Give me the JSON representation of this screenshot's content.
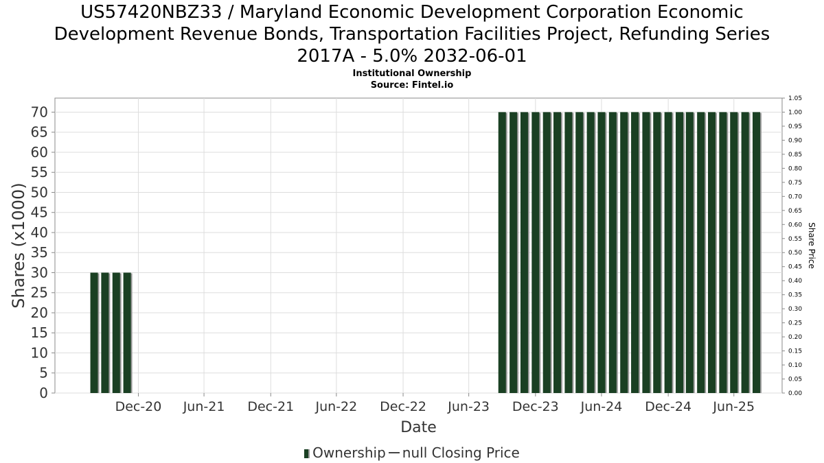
{
  "header": {
    "title_lines": [
      "US57420NBZ33 / Maryland Economic Development Corporation Economic",
      "Development Revenue Bonds, Transportation Facilities Project, Refunding Series",
      "2017A - 5.0% 2032-06-01"
    ],
    "subtitle1": "Institutional Ownership",
    "subtitle2": "Source: Fintel.io"
  },
  "legend": {
    "ownership_label": "Ownership",
    "price_label": "null Closing Price"
  },
  "colors": {
    "bar": "#1a4023",
    "bar_shadow": "#999999",
    "grid": "#dddddd",
    "axis": "#888888"
  },
  "chart_data": {
    "type": "bar",
    "xlabel": "Date",
    "ylabel": "Shares (x1000)",
    "y2label": "Share Price",
    "ylim": [
      0,
      73.5
    ],
    "yticks": [
      0,
      5,
      10,
      15,
      20,
      25,
      30,
      35,
      40,
      45,
      50,
      55,
      60,
      65,
      70
    ],
    "y2lim": [
      0,
      1.05
    ],
    "y2ticks": [
      "0.00",
      "0.05",
      "0.10",
      "0.15",
      "0.20",
      "0.25",
      "0.30",
      "0.35",
      "0.40",
      "0.45",
      "0.50",
      "0.55",
      "0.60",
      "0.65",
      "0.70",
      "0.75",
      "0.80",
      "0.85",
      "0.90",
      "0.95",
      "1.00",
      "1.05"
    ],
    "xlim": [
      "2020-05-15",
      "2025-11-10"
    ],
    "xticks": [
      {
        "label": "Dec-20",
        "date": "2020-12-31"
      },
      {
        "label": "Jun-21",
        "date": "2021-06-30"
      },
      {
        "label": "Dec-21",
        "date": "2021-12-31"
      },
      {
        "label": "Jun-22",
        "date": "2022-06-30"
      },
      {
        "label": "Dec-22",
        "date": "2022-12-31"
      },
      {
        "label": "Jun-23",
        "date": "2023-06-30"
      },
      {
        "label": "Dec-23",
        "date": "2023-12-31"
      },
      {
        "label": "Jun-24",
        "date": "2024-06-30"
      },
      {
        "label": "Dec-24",
        "date": "2024-12-31"
      },
      {
        "label": "Jun-25",
        "date": "2025-06-30"
      }
    ],
    "grid": true,
    "series": [
      {
        "name": "Ownership",
        "points": [
          {
            "date": "2020-08-31",
            "value": 30
          },
          {
            "date": "2020-09-30",
            "value": 30
          },
          {
            "date": "2020-10-31",
            "value": 30
          },
          {
            "date": "2020-11-30",
            "value": 30
          },
          {
            "date": "2023-09-30",
            "value": 70
          },
          {
            "date": "2023-10-31",
            "value": 70
          },
          {
            "date": "2023-11-30",
            "value": 70
          },
          {
            "date": "2023-12-31",
            "value": 70
          },
          {
            "date": "2024-01-31",
            "value": 70
          },
          {
            "date": "2024-02-29",
            "value": 70
          },
          {
            "date": "2024-03-31",
            "value": 70
          },
          {
            "date": "2024-04-30",
            "value": 70
          },
          {
            "date": "2024-05-31",
            "value": 70
          },
          {
            "date": "2024-06-30",
            "value": 70
          },
          {
            "date": "2024-07-31",
            "value": 70
          },
          {
            "date": "2024-08-31",
            "value": 70
          },
          {
            "date": "2024-09-30",
            "value": 70
          },
          {
            "date": "2024-10-31",
            "value": 70
          },
          {
            "date": "2024-11-30",
            "value": 70
          },
          {
            "date": "2024-12-31",
            "value": 70
          },
          {
            "date": "2025-01-31",
            "value": 70
          },
          {
            "date": "2025-02-28",
            "value": 70
          },
          {
            "date": "2025-03-31",
            "value": 70
          },
          {
            "date": "2025-04-30",
            "value": 70
          },
          {
            "date": "2025-05-31",
            "value": 70
          },
          {
            "date": "2025-06-30",
            "value": 70
          },
          {
            "date": "2025-07-31",
            "value": 70
          },
          {
            "date": "2025-08-31",
            "value": 70
          }
        ]
      }
    ]
  }
}
